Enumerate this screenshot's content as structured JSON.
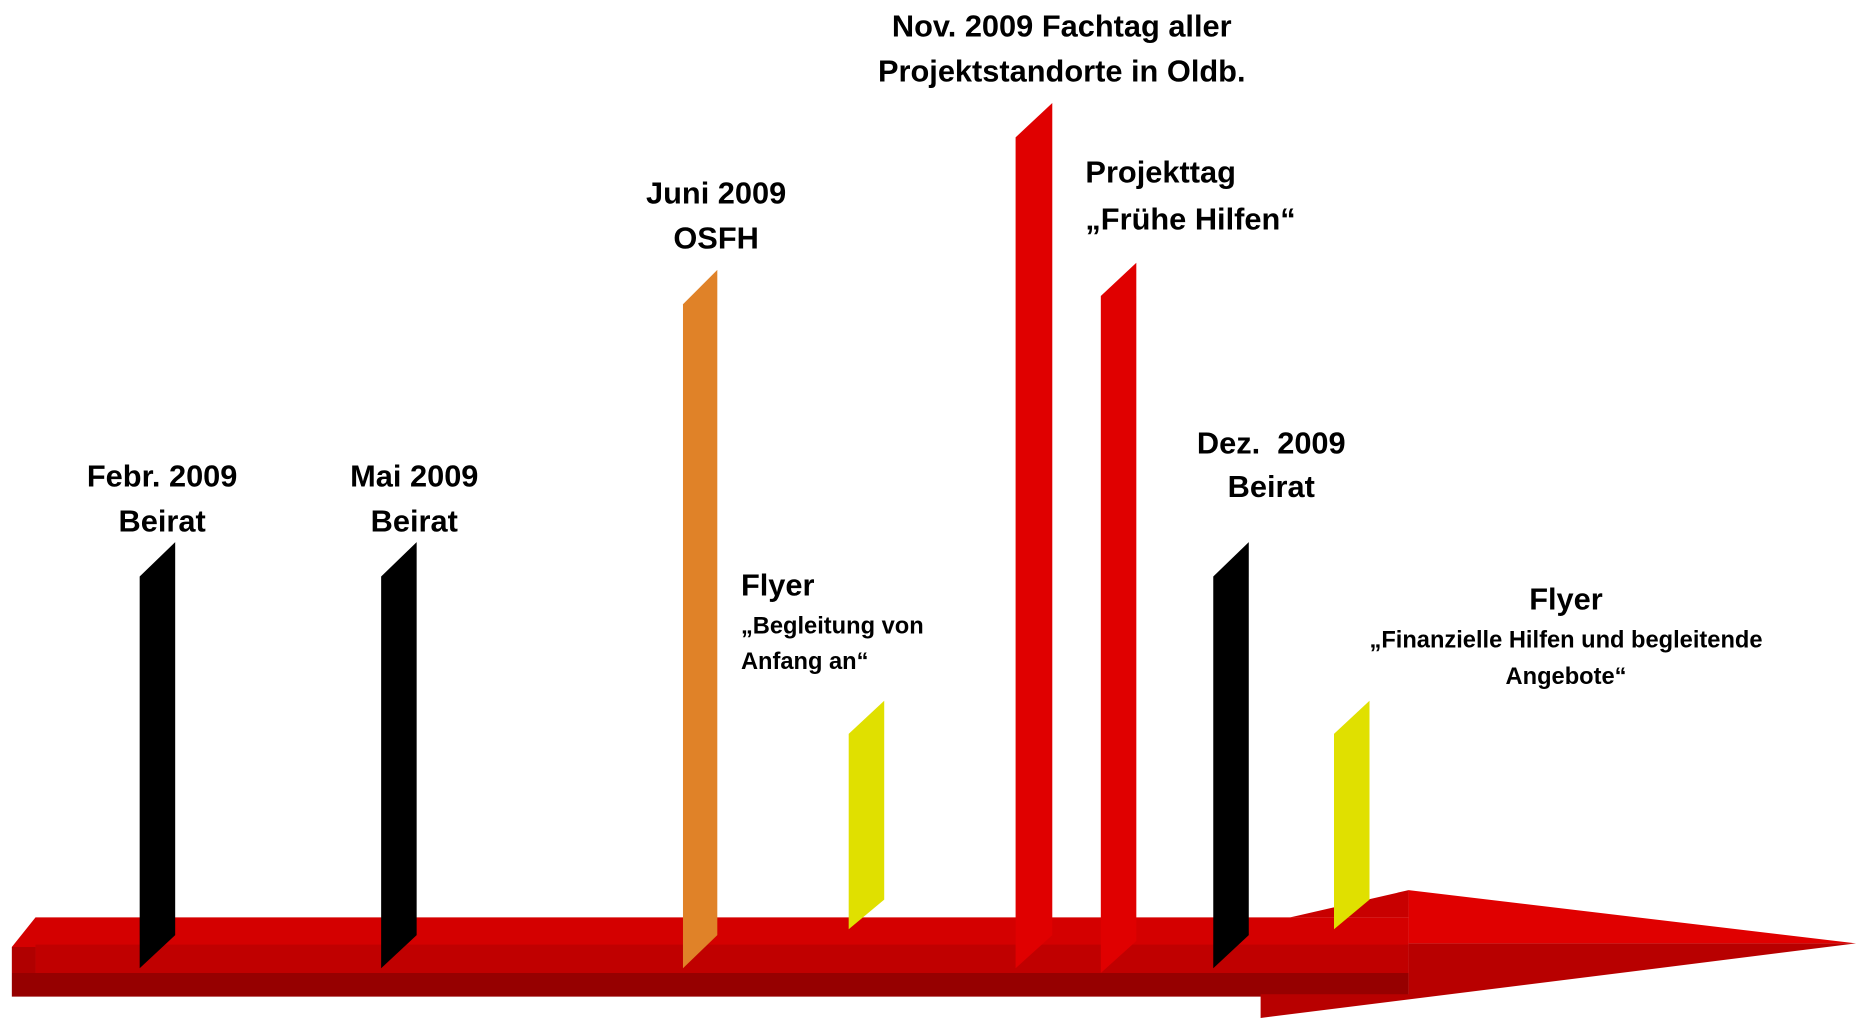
{
  "events": [
    {
      "lines": [
        "Febr. 2009",
        "Beirat"
      ]
    },
    {
      "lines": [
        "Mai 2009",
        "Beirat"
      ]
    },
    {
      "lines": [
        "Juni 2009",
        "OSFH"
      ]
    },
    {
      "lines": [
        "Flyer",
        "„Begleitung von",
        "Anfang an“"
      ]
    },
    {
      "lines": [
        "Nov. 2009 Fachtag aller",
        "Projektstandorte in Oldb."
      ]
    },
    {
      "lines": [
        "Projekttag",
        "„Frühe Hilfen“"
      ]
    },
    {
      "lines": [
        "Dez.  2009",
        "Beirat"
      ]
    },
    {
      "lines": [
        "Flyer",
        "„Finanzielle Hilfen und begleitende",
        "Angebote“"
      ]
    }
  ]
}
